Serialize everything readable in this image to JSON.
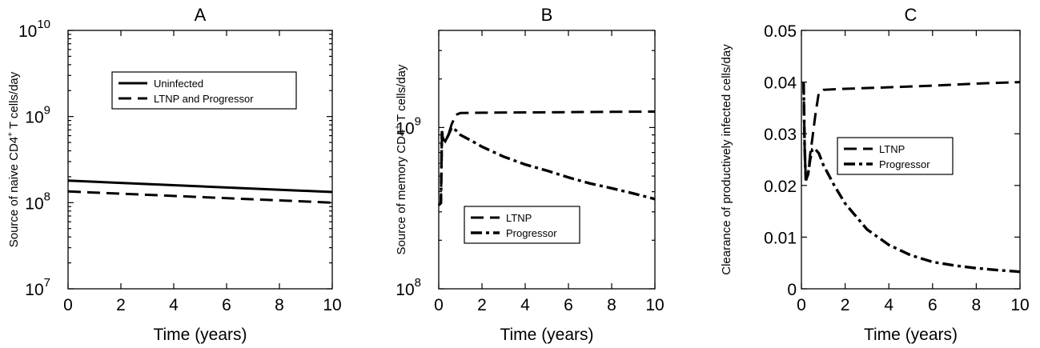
{
  "chart_data": [
    {
      "type": "line",
      "title": "A",
      "xlabel": "Time (years)",
      "ylabel_parts": [
        "Source of naive CD4",
        "+",
        " T cells/day"
      ],
      "yscale": "log",
      "xlim": [
        0,
        10
      ],
      "ylim": [
        10000000,
        10000000000
      ],
      "xticks": [
        "0",
        "2",
        "4",
        "6",
        "8",
        "10"
      ],
      "yticks": [
        {
          "base": "10",
          "exp": "7"
        },
        {
          "base": "10",
          "exp": "8"
        },
        {
          "base": "10",
          "exp": "9"
        },
        {
          "base": "10",
          "exp": "10"
        }
      ],
      "legend_position": "top-left",
      "series": [
        {
          "name": "Uninfected",
          "style": "solid",
          "x": [
            0,
            10
          ],
          "y": [
            180000000,
            133000000
          ]
        },
        {
          "name": "LTNP and Progressor",
          "style": "dashed",
          "x": [
            0,
            10
          ],
          "y": [
            135000000,
            100000000
          ]
        }
      ]
    },
    {
      "type": "line",
      "title": "B",
      "xlabel": "Time (years)",
      "ylabel_parts": [
        "Source of memory CD4",
        "+",
        " T cells/day"
      ],
      "yscale": "log",
      "xlim": [
        0,
        10
      ],
      "ylim": [
        100000000,
        4000000000
      ],
      "xticks": [
        "0",
        "2",
        "4",
        "6",
        "8",
        "10"
      ],
      "yticks": [
        {
          "base": "10",
          "exp": "8"
        },
        {
          "base": "10",
          "exp": "9"
        }
      ],
      "legend_position": "center",
      "series": [
        {
          "name": "LTNP",
          "style": "dashed",
          "x": [
            0,
            0.1,
            0.15,
            0.2,
            0.3,
            0.45,
            0.6,
            0.8,
            1.0,
            2,
            4,
            6,
            8,
            10
          ],
          "y": [
            330000000,
            340000000,
            950000000,
            850000000,
            820000000,
            900000000,
            1050000000,
            1200000000,
            1230000000,
            1235000000,
            1240000000,
            1245000000,
            1250000000,
            1255000000
          ]
        },
        {
          "name": "Progressor",
          "style": "dashdot",
          "x": [
            0,
            0.1,
            0.15,
            0.2,
            0.3,
            0.45,
            0.6,
            0.8,
            1.0,
            1.5,
            2,
            3,
            4,
            5,
            6,
            7,
            8,
            9,
            10
          ],
          "y": [
            330000000,
            340000000,
            950000000,
            850000000,
            820000000,
            900000000,
            1000000000,
            960000000,
            900000000,
            830000000,
            760000000,
            660000000,
            590000000,
            540000000,
            490000000,
            450000000,
            420000000,
            390000000,
            360000000
          ]
        }
      ]
    },
    {
      "type": "line",
      "title": "C",
      "xlabel": "Time (years)",
      "ylabel_parts": [
        "Clearance of productively infected cells/day",
        "",
        ""
      ],
      "yscale": "linear",
      "xlim": [
        0,
        10
      ],
      "ylim": [
        0,
        0.05
      ],
      "xticks": [
        "0",
        "2",
        "4",
        "6",
        "8",
        "10"
      ],
      "yticks": [
        {
          "base": "0",
          "exp": ""
        },
        {
          "base": "0.01",
          "exp": ""
        },
        {
          "base": "0.02",
          "exp": ""
        },
        {
          "base": "0.03",
          "exp": ""
        },
        {
          "base": "0.04",
          "exp": ""
        },
        {
          "base": "0.05",
          "exp": ""
        }
      ],
      "legend_position": "center-right",
      "series": [
        {
          "name": "LTNP",
          "style": "dashed",
          "x": [
            0.1,
            0.15,
            0.2,
            0.3,
            0.4,
            0.5,
            0.65,
            0.8,
            1.0,
            2,
            4,
            6,
            8,
            10
          ],
          "y": [
            0.04,
            0.027,
            0.021,
            0.022,
            0.026,
            0.029,
            0.034,
            0.038,
            0.0385,
            0.0387,
            0.039,
            0.0393,
            0.0397,
            0.04
          ]
        },
        {
          "name": "Progressor",
          "style": "dashdot",
          "x": [
            0.1,
            0.15,
            0.2,
            0.3,
            0.4,
            0.5,
            0.6,
            0.8,
            1.0,
            1.5,
            2,
            3,
            4,
            5,
            6,
            7,
            8,
            9,
            10
          ],
          "y": [
            0.04,
            0.027,
            0.021,
            0.022,
            0.025,
            0.027,
            0.0272,
            0.0262,
            0.024,
            0.02,
            0.0165,
            0.0115,
            0.0085,
            0.0065,
            0.0052,
            0.0045,
            0.004,
            0.0036,
            0.0033
          ]
        }
      ]
    }
  ]
}
